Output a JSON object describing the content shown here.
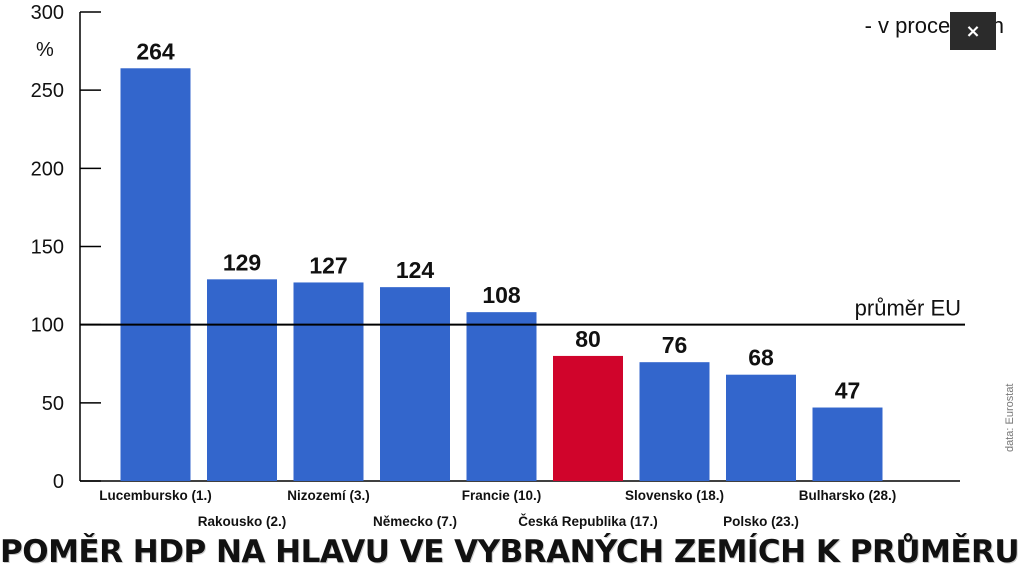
{
  "chart_data": {
    "type": "bar",
    "title": "POMĚR HDP NA HLAVU VE VYBRANÝCH ZEMÍCH K PRŮMĚRU EU",
    "ylabel": "%",
    "unit_note": "- v procentech",
    "source": "data: Eurostat",
    "ylim": [
      0,
      300
    ],
    "yticks": [
      0,
      50,
      100,
      150,
      200,
      250,
      300
    ],
    "categories": [
      "Lucembursko (1.)",
      "Rakousko (2.)",
      "Nizozemí (3.)",
      "Německo (7.)",
      "Francie (10.)",
      "Česká Republika (17.)",
      "Slovensko (18.)",
      "Polsko (23.)",
      "Bulharsko (28.)"
    ],
    "values": [
      264,
      129,
      127,
      124,
      108,
      80,
      76,
      68,
      47
    ],
    "highlight": [
      "Česká Republika (17.)"
    ],
    "reference_line": {
      "value": 100,
      "label": "průměr EU"
    },
    "grid": false,
    "legend": "none",
    "colors": {
      "bar": "#3366cc",
      "highlight": "#d0042b",
      "axis": "#000000"
    }
  },
  "ui": {
    "close_label": "×"
  }
}
